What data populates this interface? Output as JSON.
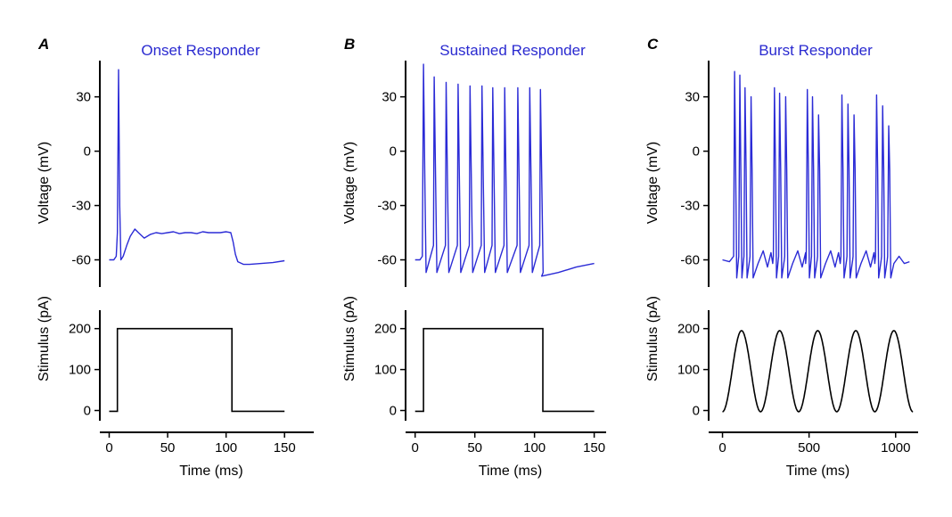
{
  "colors": {
    "voltage": "#2b2bd6",
    "stimulus": "#000000",
    "title": "#2a2ad0"
  },
  "chart_data": [
    {
      "panel": "A",
      "title": "Onset Responder",
      "type": "line",
      "xlabel": "Time (ms)",
      "xlim": [
        -8,
        175
      ],
      "xticks": [
        0,
        50,
        100,
        150
      ],
      "voltage": {
        "ylabel": "Voltage (mV)",
        "ylim": [
          -75,
          50
        ],
        "yticks": [
          30,
          0,
          -30,
          -60
        ],
        "x": [
          0,
          4,
          6,
          7,
          8,
          9,
          10,
          12,
          15,
          18,
          22,
          25,
          30,
          35,
          40,
          45,
          50,
          55,
          60,
          65,
          70,
          75,
          80,
          85,
          90,
          95,
          100,
          104,
          106,
          108,
          110,
          115,
          120,
          130,
          140,
          150
        ],
        "y": [
          -60,
          -60,
          -58,
          -45,
          45,
          -30,
          -60,
          -58,
          -52,
          -47,
          -43,
          -45,
          -48,
          -46,
          -45,
          -45.5,
          -45,
          -44.5,
          -45.5,
          -45,
          -45,
          -45.5,
          -44.5,
          -45,
          -45,
          -45,
          -44.5,
          -45,
          -50,
          -57,
          -61,
          -62.5,
          -62.5,
          -62,
          -61.5,
          -60.5
        ]
      },
      "stimulus": {
        "ylabel": "Stimulus (pA)",
        "ylim": [
          -25,
          245
        ],
        "yticks": [
          200,
          100,
          0
        ],
        "x": [
          0,
          7,
          7,
          105,
          105,
          150
        ],
        "y": [
          -2,
          -2,
          200,
          200,
          -2,
          -2
        ]
      }
    },
    {
      "panel": "B",
      "title": "Sustained Responder",
      "type": "line",
      "xlabel": "Time (ms)",
      "xlim": [
        -8,
        160
      ],
      "xticks": [
        0,
        50,
        100,
        150
      ],
      "voltage": {
        "ylabel": "Voltage (mV)",
        "ylim": [
          -75,
          50
        ],
        "yticks": [
          30,
          0,
          -30,
          -60
        ],
        "spike_times": [
          7,
          16,
          26,
          36,
          46,
          56,
          65,
          75,
          86,
          96,
          105
        ],
        "spike_peaks": [
          48,
          41,
          38,
          37,
          36,
          36,
          35,
          35,
          35,
          35,
          34
        ],
        "rest": -60,
        "after_stim": [
          [
            106,
            -69
          ],
          [
            120,
            -67
          ],
          [
            135,
            -64
          ],
          [
            150,
            -62
          ]
        ]
      },
      "stimulus": {
        "ylabel": "Stimulus (pA)",
        "ylim": [
          -25,
          245
        ],
        "yticks": [
          200,
          100,
          0
        ],
        "x": [
          0,
          7,
          7,
          107,
          107,
          150
        ],
        "y": [
          -2,
          -2,
          200,
          200,
          -2,
          -2
        ]
      }
    },
    {
      "panel": "C",
      "title": "Burst Responder",
      "type": "line",
      "xlabel": "Time (ms)",
      "xlim": [
        -80,
        1130
      ],
      "xticks": [
        0,
        500,
        1000
      ],
      "voltage": {
        "ylabel": "Voltage (mV)",
        "ylim": [
          -75,
          50
        ],
        "yticks": [
          30,
          0,
          -30,
          -60
        ],
        "spike_times": [
          70,
          100,
          130,
          165,
          300,
          330,
          365,
          490,
          520,
          555,
          690,
          725,
          760,
          890,
          925,
          960
        ],
        "spike_peaks": [
          44,
          42,
          35,
          30,
          35,
          32,
          30,
          34,
          30,
          20,
          31,
          26,
          20,
          31,
          25,
          14
        ],
        "rest": -60
      },
      "stimulus": {
        "ylabel": "Stimulus (pA)",
        "ylim": [
          -25,
          245
        ],
        "yticks": [
          200,
          100,
          0
        ],
        "waveform": "sine",
        "min": -3,
        "max": 195,
        "start": 0,
        "end": 1100,
        "cycles": 5,
        "x_range": [
          0,
          1100
        ]
      }
    }
  ]
}
